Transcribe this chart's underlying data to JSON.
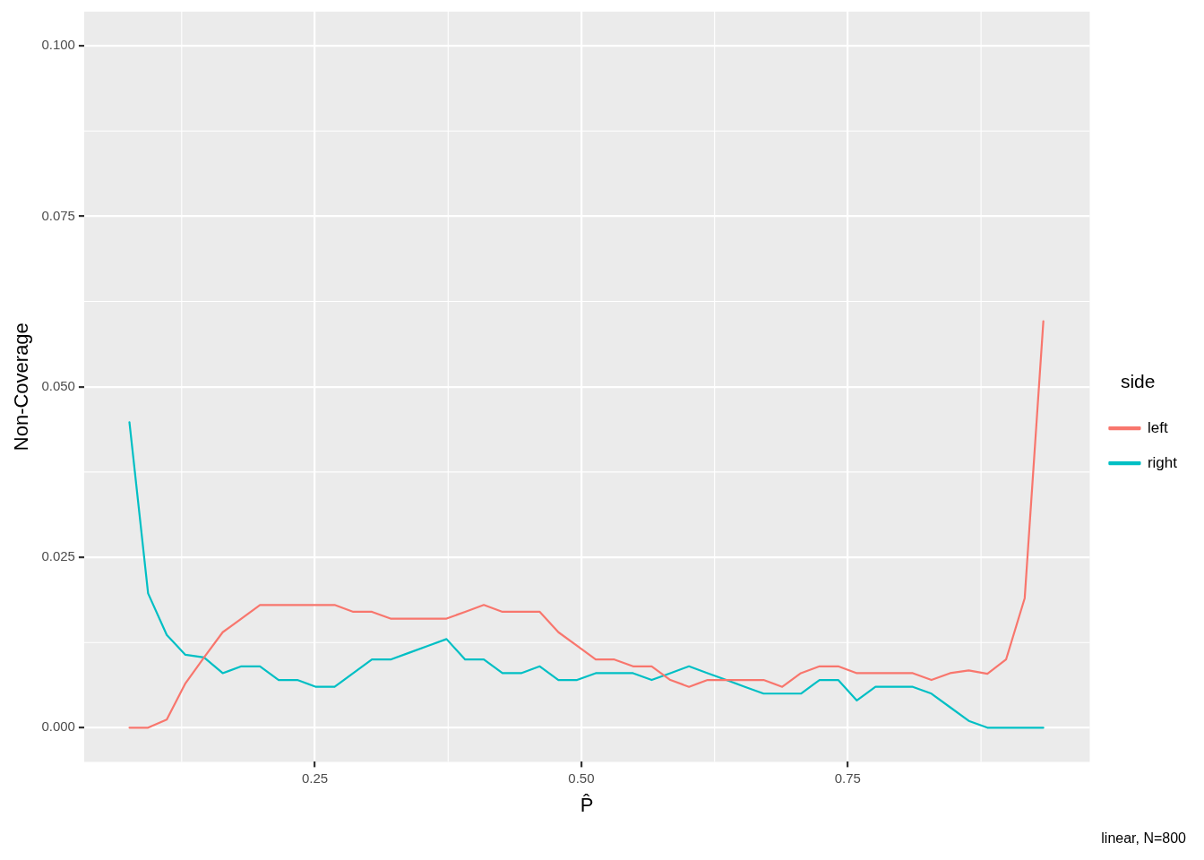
{
  "chart_data": {
    "type": "line",
    "xlabel": "P̂",
    "ylabel": "Non-Coverage",
    "legend_title": "side",
    "annotations": [
      "linear, N=800"
    ],
    "x": [
      0.076,
      0.0935,
      0.111,
      0.1285,
      0.146,
      0.1635,
      0.181,
      0.1985,
      0.216,
      0.2335,
      0.251,
      0.2685,
      0.286,
      0.3035,
      0.321,
      0.3385,
      0.356,
      0.3735,
      0.391,
      0.4085,
      0.426,
      0.4435,
      0.461,
      0.4785,
      0.496,
      0.5135,
      0.531,
      0.5485,
      0.566,
      0.5835,
      0.601,
      0.6185,
      0.636,
      0.6535,
      0.671,
      0.6885,
      0.706,
      0.7235,
      0.741,
      0.7585,
      0.776,
      0.7935,
      0.811,
      0.8285,
      0.846,
      0.8635,
      0.881,
      0.8985,
      0.916,
      0.9335
    ],
    "series": [
      {
        "name": "left",
        "color": "#f8766d",
        "values": [
          0,
          0,
          0.0012,
          0.0065,
          0.0103,
          0.014,
          0.016,
          0.018,
          0.018,
          0.018,
          0.018,
          0.018,
          0.017,
          0.017,
          0.016,
          0.016,
          0.016,
          0.016,
          0.017,
          0.018,
          0.017,
          0.017,
          0.017,
          0.014,
          0.012,
          0.01,
          0.01,
          0.009,
          0.009,
          0.007,
          0.006,
          0.007,
          0.007,
          0.007,
          0.007,
          0.006,
          0.008,
          0.009,
          0.009,
          0.008,
          0.008,
          0.008,
          0.008,
          0.007,
          0.008,
          0.0084,
          0.0079,
          0.01,
          0.019,
          0.0596
        ]
      },
      {
        "name": "right",
        "color": "#00bfc4",
        "values": [
          0.0448,
          0.0197,
          0.0136,
          0.0107,
          0.0103,
          0.008,
          0.009,
          0.009,
          0.007,
          0.007,
          0.006,
          0.006,
          0.008,
          0.01,
          0.01,
          0.011,
          0.012,
          0.013,
          0.01,
          0.01,
          0.008,
          0.008,
          0.009,
          0.007,
          0.007,
          0.008,
          0.008,
          0.008,
          0.007,
          0.008,
          0.009,
          0.008,
          0.007,
          0.006,
          0.005,
          0.005,
          0.005,
          0.007,
          0.007,
          0.004,
          0.006,
          0.006,
          0.006,
          0.005,
          0.003,
          0.001,
          0,
          0,
          0,
          0
        ]
      }
    ],
    "xlim": [
      0.0335,
      0.977
    ],
    "xticks": [
      {
        "value": 0.25,
        "label": "0.25"
      },
      {
        "value": 0.5,
        "label": "0.50"
      },
      {
        "value": 0.75,
        "label": "0.75"
      }
    ],
    "ylim": [
      -0.005,
      0.105
    ],
    "yticks": [
      {
        "value": 0,
        "label": "0.000"
      },
      {
        "value": 0.025,
        "label": "0.025"
      },
      {
        "value": 0.05,
        "label": "0.050"
      },
      {
        "value": 0.075,
        "label": "0.075"
      },
      {
        "value": 0.1,
        "label": "0.100"
      }
    ],
    "grid": true,
    "legend": "right",
    "marker": "none",
    "line_style": "solid"
  }
}
